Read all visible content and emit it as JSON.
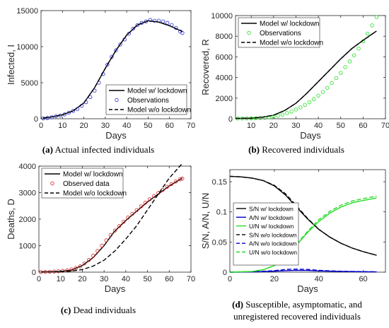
{
  "chart_data": [
    {
      "type": "line",
      "panel": "a",
      "caption": {
        "tag": "(a)",
        "text": "Actual infected individuals"
      },
      "xlabel": "Days",
      "ylabel": "Infected, I",
      "xlim": [
        0,
        70
      ],
      "ylim": [
        0,
        15000
      ],
      "xticks": [
        0,
        10,
        20,
        30,
        40,
        50,
        60,
        70
      ],
      "xtick_labels": [
        "0",
        "10",
        "20",
        "30",
        "40",
        "50",
        "60",
        "70"
      ],
      "yticks": [
        0,
        5000,
        10000,
        15000
      ],
      "ytick_labels": [
        "0",
        "5000",
        "10000",
        "15000"
      ],
      "legend_position": "lower-right",
      "series": [
        {
          "name": "Model w/ lockdown",
          "style": "solid",
          "color": "#000000",
          "x": [
            1,
            5,
            10,
            15,
            20,
            25,
            30,
            35,
            40,
            45,
            50,
            55,
            60,
            66
          ],
          "y": [
            100,
            250,
            550,
            1100,
            2200,
            4300,
            7000,
            9500,
            11600,
            13000,
            13600,
            13400,
            12900,
            12100
          ]
        },
        {
          "name": "Observations",
          "style": "markers",
          "color": "#2b2bd6",
          "x": [
            1,
            3,
            5,
            7,
            9,
            11,
            13,
            15,
            17,
            19,
            21,
            23,
            25,
            27,
            29,
            31,
            33,
            35,
            37,
            39,
            41,
            43,
            45,
            47,
            49,
            51,
            53,
            55,
            57,
            59,
            61,
            63,
            65,
            66
          ],
          "y": [
            50,
            100,
            200,
            350,
            450,
            600,
            850,
            1100,
            1350,
            1800,
            2300,
            3000,
            3900,
            5000,
            6200,
            7500,
            8600,
            9500,
            10300,
            11000,
            11800,
            12500,
            13000,
            13300,
            13500,
            13700,
            13600,
            13600,
            13500,
            13300,
            13000,
            12600,
            12100,
            11900
          ]
        },
        {
          "name": "Model w/o lockdown",
          "style": "dashed",
          "color": "#000000",
          "x": [
            1,
            5,
            10,
            15,
            20,
            25,
            30,
            35,
            40,
            45,
            50,
            55,
            60,
            66
          ],
          "y": [
            100,
            250,
            550,
            1100,
            2200,
            4300,
            7000,
            9500,
            11600,
            13000,
            13600,
            13400,
            12900,
            12100
          ]
        }
      ]
    },
    {
      "type": "line",
      "panel": "b",
      "caption": {
        "tag": "(b)",
        "text": "Recovered individuals"
      },
      "xlabel": "Days",
      "ylabel": "Recovered, R",
      "xlim": [
        3,
        70
      ],
      "ylim": [
        0,
        10000
      ],
      "xticks": [
        10,
        20,
        30,
        40,
        50,
        60,
        70
      ],
      "xtick_labels": [
        "10",
        "20",
        "30",
        "40",
        "50",
        "60",
        "70"
      ],
      "yticks": [
        0,
        2000,
        4000,
        6000,
        8000,
        10000
      ],
      "ytick_labels": [
        "0",
        "2000",
        "4000",
        "6000",
        "8000",
        "10000"
      ],
      "legend_position": "top-left",
      "series": [
        {
          "name": "Model w/ lockdown",
          "style": "solid",
          "color": "#000000",
          "x": [
            3,
            10,
            15,
            20,
            25,
            30,
            35,
            40,
            45,
            50,
            55,
            60,
            66
          ],
          "y": [
            30,
            60,
            150,
            350,
            800,
            1500,
            2500,
            3600,
            4700,
            5800,
            6800,
            7600,
            8500
          ]
        },
        {
          "name": "Observations",
          "style": "markers",
          "color": "#22dd22",
          "x": [
            4,
            6,
            8,
            10,
            12,
            14,
            16,
            18,
            20,
            22,
            24,
            26,
            28,
            30,
            32,
            34,
            36,
            38,
            40,
            42,
            44,
            46,
            48,
            50,
            52,
            54,
            56,
            58,
            60,
            62,
            64,
            66
          ],
          "y": [
            20,
            25,
            30,
            40,
            50,
            70,
            100,
            150,
            220,
            300,
            400,
            550,
            700,
            900,
            1100,
            1350,
            1600,
            1900,
            2250,
            2600,
            3000,
            3450,
            3950,
            4450,
            5000,
            5550,
            6150,
            6800,
            7500,
            8250,
            9050,
            9850
          ]
        },
        {
          "name": "Model w/o lockdown",
          "style": "dashed",
          "color": "#000000",
          "x": [
            3,
            10,
            15,
            20,
            25,
            30,
            35,
            40,
            45,
            50,
            55,
            60,
            66
          ],
          "y": [
            30,
            60,
            150,
            350,
            800,
            1500,
            2500,
            3600,
            4700,
            5800,
            6800,
            7600,
            8500
          ]
        }
      ]
    },
    {
      "type": "line",
      "panel": "c",
      "caption": {
        "tag": "(c)",
        "text": "Dead individuals"
      },
      "xlabel": "Days",
      "ylabel": "Deaths, D",
      "xlim": [
        0,
        70
      ],
      "ylim": [
        0,
        4000
      ],
      "xticks": [
        0,
        10,
        20,
        30,
        40,
        50,
        60,
        70
      ],
      "xtick_labels": [
        "0",
        "10",
        "20",
        "30",
        "40",
        "50",
        "60",
        "70"
      ],
      "yticks": [
        0,
        1000,
        2000,
        3000,
        4000
      ],
      "ytick_labels": [
        "0",
        "1000",
        "2000",
        "3000",
        "4000"
      ],
      "legend_position": "top-left",
      "series": [
        {
          "name": "Model w/ lockdown",
          "style": "solid",
          "color": "#000000",
          "x": [
            1,
            5,
            10,
            15,
            20,
            25,
            30,
            34,
            35,
            40,
            45,
            50,
            55,
            60,
            66
          ],
          "y": [
            10,
            15,
            30,
            80,
            250,
            550,
            1000,
            1450,
            1550,
            1950,
            2300,
            2650,
            2950,
            3250,
            3550
          ]
        },
        {
          "name": "Observed data",
          "style": "markers",
          "color": "#dd2222",
          "x": [
            1,
            3,
            5,
            7,
            9,
            11,
            13,
            15,
            17,
            19,
            21,
            23,
            25,
            27,
            29,
            31,
            33,
            35,
            37,
            39,
            41,
            43,
            45,
            47,
            49,
            51,
            53,
            55,
            57,
            59,
            61,
            63,
            65,
            66
          ],
          "y": [
            5,
            10,
            15,
            25,
            35,
            50,
            70,
            100,
            150,
            220,
            330,
            460,
            620,
            800,
            1000,
            1200,
            1400,
            1570,
            1740,
            1900,
            2060,
            2200,
            2340,
            2480,
            2620,
            2750,
            2870,
            2990,
            3100,
            3220,
            3320,
            3420,
            3500,
            3530
          ]
        },
        {
          "name": "Model w/o lockdown",
          "style": "dashed",
          "color": "#000000",
          "x": [
            1,
            10,
            15,
            20,
            25,
            30,
            35,
            40,
            45,
            50,
            55,
            60,
            66
          ],
          "y": [
            5,
            15,
            40,
            100,
            230,
            450,
            800,
            1250,
            1750,
            2350,
            2950,
            3550,
            4100
          ]
        }
      ]
    },
    {
      "type": "line",
      "panel": "d",
      "caption": {
        "tag": "(d)",
        "text": "Susceptible, asymptomatic, and unregistered recovered individuals"
      },
      "xlabel": "Days",
      "ylabel": "S/N, A/N, U/N",
      "xlim": [
        0,
        70
      ],
      "ylim": [
        0,
        0.17
      ],
      "xticks": [
        0,
        20,
        40,
        60
      ],
      "xtick_labels": [
        "0",
        "20",
        "40",
        "60"
      ],
      "yticks": [
        0,
        0.05,
        0.1,
        0.15
      ],
      "ytick_labels": [
        "0",
        "0.05",
        "0.1",
        "0.15"
      ],
      "legend_position": "center-left",
      "series": [
        {
          "name": "S/N w/ lockdown",
          "style": "solid",
          "color": "#000000",
          "x": [
            0,
            5,
            10,
            15,
            20,
            25,
            30,
            35,
            40,
            45,
            50,
            55,
            60,
            66
          ],
          "y": [
            0.159,
            0.158,
            0.156,
            0.152,
            0.143,
            0.128,
            0.108,
            0.088,
            0.071,
            0.058,
            0.048,
            0.04,
            0.034,
            0.028
          ]
        },
        {
          "name": "A/N w/ lockdown",
          "style": "solid",
          "color": "#0000cc",
          "x": [
            0,
            10,
            20,
            25,
            30,
            35,
            40,
            50,
            60,
            66
          ],
          "y": [
            0.0,
            0.0003,
            0.0015,
            0.0025,
            0.003,
            0.0028,
            0.002,
            0.0012,
            0.0007,
            0.0005
          ]
        },
        {
          "name": "U/N w/ lockdown",
          "style": "solid",
          "color": "#22dd22",
          "x": [
            0,
            10,
            15,
            20,
            25,
            30,
            35,
            40,
            45,
            50,
            55,
            60,
            66
          ],
          "y": [
            0.0,
            0.001,
            0.004,
            0.011,
            0.025,
            0.045,
            0.066,
            0.084,
            0.098,
            0.108,
            0.115,
            0.119,
            0.123
          ]
        },
        {
          "name": "S/N w/o lockdown",
          "style": "dashed",
          "color": "#000000",
          "x": [
            0,
            5,
            10,
            15,
            20,
            25,
            30,
            35,
            40,
            45,
            50,
            55,
            60,
            66
          ],
          "y": [
            0.159,
            0.158,
            0.156,
            0.152,
            0.144,
            0.13,
            0.11,
            0.089,
            0.071,
            0.058,
            0.048,
            0.04,
            0.034,
            0.028
          ]
        },
        {
          "name": "A/N w/o lockdown",
          "style": "dashed",
          "color": "#0000cc",
          "x": [
            0,
            10,
            20,
            25,
            30,
            35,
            40,
            50,
            60,
            66
          ],
          "y": [
            0.0,
            0.0004,
            0.0025,
            0.0045,
            0.005,
            0.0045,
            0.003,
            0.0015,
            0.0008,
            0.0006
          ]
        },
        {
          "name": "U/N  w/o lockdown",
          "style": "dashed",
          "color": "#22dd22",
          "x": [
            0,
            10,
            15,
            20,
            25,
            30,
            35,
            40,
            45,
            50,
            55,
            60,
            66
          ],
          "y": [
            0.0,
            0.001,
            0.004,
            0.011,
            0.025,
            0.046,
            0.068,
            0.087,
            0.101,
            0.111,
            0.118,
            0.122,
            0.126
          ]
        }
      ]
    }
  ]
}
